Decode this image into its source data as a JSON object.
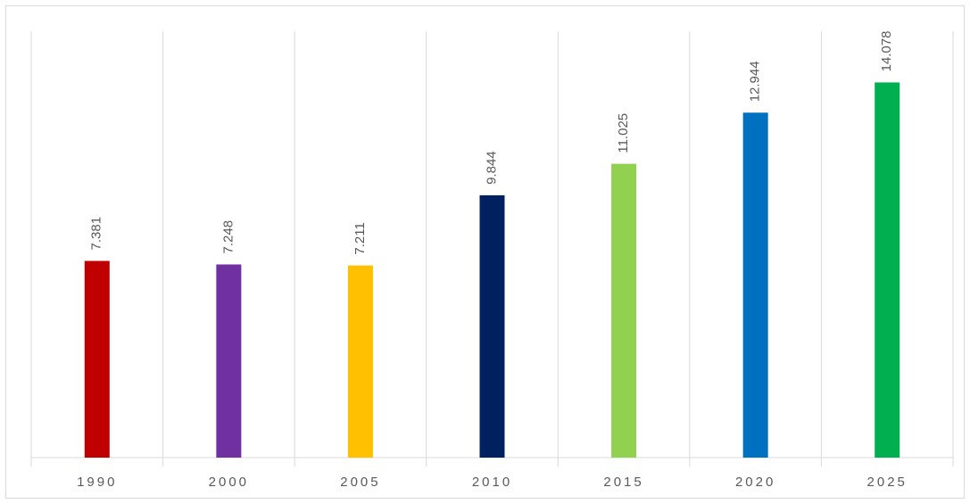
{
  "chart_data": {
    "type": "bar",
    "categories": [
      "1990",
      "2000",
      "2005",
      "2010",
      "2015",
      "2020",
      "2025"
    ],
    "values": [
      7.381,
      7.248,
      7.211,
      9.844,
      11.025,
      12.944,
      14.078
    ],
    "colors": [
      "#c00000",
      "#7030a0",
      "#ffc000",
      "#002060",
      "#92d050",
      "#0070c0",
      "#00b050"
    ],
    "ylim": [
      0,
      16
    ]
  }
}
